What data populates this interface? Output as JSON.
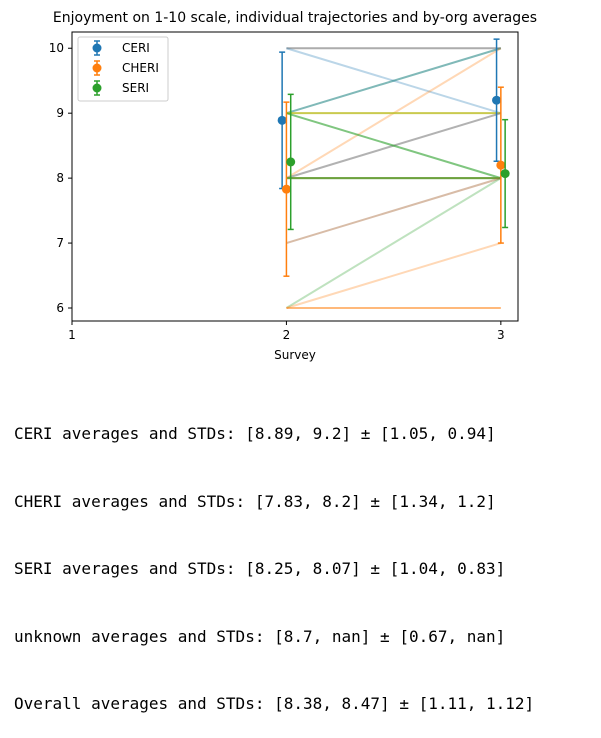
{
  "chart_data": {
    "type": "line",
    "title": "Enjoyment on 1-10 scale, individual trajectories and by-org averages",
    "xlabel": "Survey",
    "ylabel": "",
    "xlim": [
      1,
      3.08
    ],
    "ylim": [
      5.8,
      10.25
    ],
    "xticks": [
      "1",
      "2",
      "3"
    ],
    "yticks": [
      "6",
      "7",
      "8",
      "9",
      "10"
    ],
    "legend_position": "upper-left",
    "grid": false,
    "trajectories": [
      {
        "x": [
          2,
          3
        ],
        "y": [
          10,
          10
        ],
        "color": "#7f7f7f",
        "alpha": 0.65
      },
      {
        "x": [
          2,
          3
        ],
        "y": [
          10,
          9
        ],
        "color": "#1f77b4",
        "alpha": 0.3
      },
      {
        "x": [
          2,
          3
        ],
        "y": [
          9,
          10
        ],
        "color": "#17807e",
        "alpha": 0.55
      },
      {
        "x": [
          2,
          3
        ],
        "y": [
          8,
          10
        ],
        "color": "#ff7f0e",
        "alpha": 0.3
      },
      {
        "x": [
          2,
          3
        ],
        "y": [
          9,
          9
        ],
        "color": "#bcbd22",
        "alpha": 0.8
      },
      {
        "x": [
          2,
          3
        ],
        "y": [
          8,
          9
        ],
        "color": "#7f7f7f",
        "alpha": 0.6
      },
      {
        "x": [
          2,
          3
        ],
        "y": [
          9,
          8
        ],
        "color": "#2ca02c",
        "alpha": 0.6
      },
      {
        "x": [
          2,
          3
        ],
        "y": [
          8,
          8
        ],
        "color": "#2ca02c",
        "alpha": 0.9
      },
      {
        "x": [
          2,
          3
        ],
        "y": [
          8,
          8
        ],
        "color": "#8c9d3a",
        "alpha": 0.6
      },
      {
        "x": [
          2,
          3
        ],
        "y": [
          7,
          8
        ],
        "color": "#a86b3c",
        "alpha": 0.45
      },
      {
        "x": [
          2,
          3
        ],
        "y": [
          6,
          8
        ],
        "color": "#2ca02c",
        "alpha": 0.3
      },
      {
        "x": [
          2,
          3
        ],
        "y": [
          6,
          7
        ],
        "color": "#ff7f0e",
        "alpha": 0.3
      },
      {
        "x": [
          2,
          3
        ],
        "y": [
          6,
          6
        ],
        "color": "#ff7f0e",
        "alpha": 0.55
      }
    ],
    "series": [
      {
        "name": "CERI",
        "color": "#1f77b4",
        "x": [
          1.98,
          2.98
        ],
        "y": [
          8.89,
          9.2
        ],
        "err": [
          1.05,
          0.94
        ]
      },
      {
        "name": "CHERI",
        "color": "#ff7f0e",
        "x": [
          2.0,
          3.0
        ],
        "y": [
          7.83,
          8.2
        ],
        "err": [
          1.34,
          1.2
        ]
      },
      {
        "name": "SERI",
        "color": "#2ca02c",
        "x": [
          2.02,
          3.02
        ],
        "y": [
          8.25,
          8.07
        ],
        "err": [
          1.04,
          0.83
        ]
      }
    ]
  },
  "output": {
    "lines": [
      "CERI averages and STDs: [8.89, 9.2] ± [1.05, 0.94]",
      "CHERI averages and STDs: [7.83, 8.2] ± [1.34, 1.2]",
      "SERI averages and STDs: [8.25, 8.07] ± [1.04, 0.83]",
      "unknown averages and STDs: [8.7, nan] ± [0.67, nan]",
      "Overall averages and STDs: [8.38, 8.47] ± [1.11, 1.12]"
    ]
  }
}
